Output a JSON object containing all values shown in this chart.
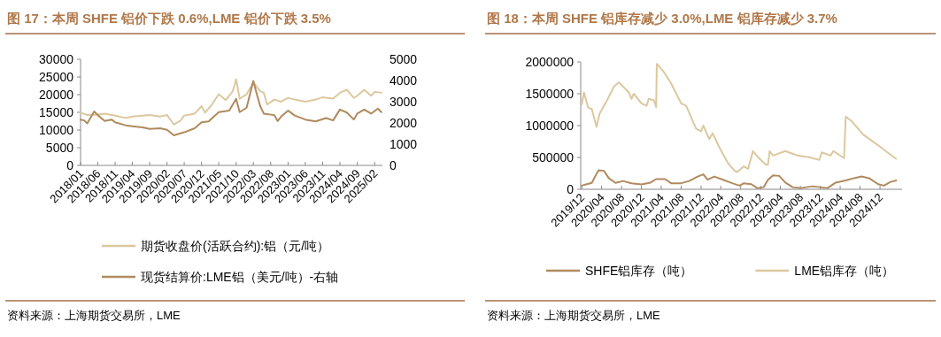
{
  "chart_data": [
    {
      "type": "line",
      "title": "图 17：本周 SHFE 铝价下跌 0.6%,LME 铝价下跌 3.5%",
      "legend": "bottom",
      "xlim": [
        "2018-01-01",
        "2025-04-10"
      ],
      "xticks": [
        {
          "value": "2018-01-01",
          "label": "2018/01"
        },
        {
          "value": "2018-06-01",
          "label": "2018/06"
        },
        {
          "value": "2018-11-01",
          "label": "2018/11"
        },
        {
          "value": "2019-04-01",
          "label": "2019/04"
        },
        {
          "value": "2019-09-01",
          "label": "2019/09"
        },
        {
          "value": "2020-02-01",
          "label": "2020/02"
        },
        {
          "value": "2020-07-01",
          "label": "2020/07"
        },
        {
          "value": "2020-12-01",
          "label": "2020/12"
        },
        {
          "value": "2021-05-01",
          "label": "2021/05"
        },
        {
          "value": "2021-10-01",
          "label": "2021/10"
        },
        {
          "value": "2022-03-01",
          "label": "2022/03"
        },
        {
          "value": "2022-08-01",
          "label": "2022/08"
        },
        {
          "value": "2023-01-01",
          "label": "2023/01"
        },
        {
          "value": "2023-06-01",
          "label": "2023/06"
        },
        {
          "value": "2023-11-01",
          "label": "2023/11"
        },
        {
          "value": "2024-04-01",
          "label": "2024/04"
        },
        {
          "value": "2024-09-01",
          "label": "2024/09"
        },
        {
          "value": "2025-02-01",
          "label": "2025/02"
        }
      ],
      "ylim": [
        0,
        30000
      ],
      "yticks": [
        0,
        5000,
        10000,
        15000,
        20000,
        25000,
        30000
      ],
      "y2lim": [
        0,
        5000
      ],
      "y2ticks": [
        0,
        1000,
        2000,
        3000,
        4000,
        5000
      ],
      "series": [
        {
          "name": "期货收盘价(活跃合约):铝（元/吨）",
          "color": "#dcc89f",
          "x": [
            "2018-01",
            "2018-03",
            "2018-06",
            "2018-08",
            "2018-11",
            "2019-02",
            "2019-04",
            "2019-07",
            "2019-09",
            "2019-12",
            "2020-02",
            "2020-04",
            "2020-06",
            "2020-07",
            "2020-10",
            "2020-12",
            "2021-01",
            "2021-03",
            "2021-05",
            "2021-07",
            "2021-09",
            "2021-10",
            "2021-11",
            "2022-01",
            "2022-03",
            "2022-05",
            "2022-06",
            "2022-07",
            "2022-09",
            "2022-11",
            "2023-01",
            "2023-03",
            "2023-06",
            "2023-09",
            "2023-11",
            "2024-02",
            "2024-04",
            "2024-06",
            "2024-08",
            "2024-09",
            "2024-11",
            "2025-01",
            "2025-02",
            "2025-04"
          ],
          "values": [
            14900,
            14250,
            14400,
            14650,
            14080,
            13400,
            13830,
            14080,
            14250,
            13830,
            14250,
            11560,
            12740,
            14080,
            14650,
            16760,
            14900,
            17180,
            20110,
            18440,
            20950,
            24300,
            18850,
            20110,
            23460,
            20950,
            20530,
            17180,
            18600,
            18020,
            19100,
            18600,
            18020,
            18600,
            19270,
            18850,
            20530,
            21370,
            19100,
            19690,
            21370,
            19690,
            20780,
            20530
          ]
        },
        {
          "name": "现货结算价:LME铝（美元/吨）-右轴",
          "color": "#b08a5e",
          "axis": "y2",
          "x": [
            "2018-01",
            "2018-02",
            "2018-03",
            "2018-05",
            "2018-06",
            "2018-08",
            "2018-10",
            "2018-11",
            "2019-02",
            "2019-04",
            "2019-07",
            "2019-09",
            "2019-12",
            "2020-02",
            "2020-04",
            "2020-07",
            "2020-10",
            "2020-12",
            "2021-02",
            "2021-05",
            "2021-08",
            "2021-09",
            "2021-10",
            "2021-11",
            "2022-01",
            "2022-03",
            "2022-04",
            "2022-05",
            "2022-06",
            "2022-09",
            "2022-10",
            "2022-11",
            "2023-01",
            "2023-03",
            "2023-06",
            "2023-09",
            "2023-12",
            "2024-02",
            "2024-04",
            "2024-06",
            "2024-08",
            "2024-09",
            "2024-11",
            "2025-01",
            "2025-03",
            "2025-04"
          ],
          "values": [
            2160,
            2120,
            1980,
            2540,
            2370,
            2090,
            2160,
            2030,
            1890,
            1840,
            1790,
            1720,
            1750,
            1680,
            1420,
            1560,
            1750,
            2030,
            2070,
            2510,
            2580,
            2860,
            3140,
            2510,
            2720,
            3980,
            3350,
            2790,
            2440,
            2370,
            2090,
            2300,
            2580,
            2350,
            2160,
            2070,
            2230,
            2120,
            2630,
            2490,
            2160,
            2440,
            2630,
            2440,
            2680,
            2510
          ]
        }
      ],
      "annotations": [
        "资料来源：上海期货交易所，LME"
      ]
    },
    {
      "type": "line",
      "title": "图 18：本周 SHFE 铝库存减少 3.0%,LME 铝库存减少 3.7%",
      "legend": "bottom",
      "xlim": [
        "2019-11-25",
        "2025-04-15"
      ],
      "xticks": [
        {
          "value": "2019-12-01",
          "label": "2019/12"
        },
        {
          "value": "2020-04-01",
          "label": "2020/04"
        },
        {
          "value": "2020-08-01",
          "label": "2020/08"
        },
        {
          "value": "2020-12-01",
          "label": "2020/12"
        },
        {
          "value": "2021-04-01",
          "label": "2021/04"
        },
        {
          "value": "2021-08-01",
          "label": "2021/08"
        },
        {
          "value": "2021-12-01",
          "label": "2021/12"
        },
        {
          "value": "2022-04-01",
          "label": "2022/04"
        },
        {
          "value": "2022-08-01",
          "label": "2022/08"
        },
        {
          "value": "2022-12-01",
          "label": "2022/12"
        },
        {
          "value": "2023-04-01",
          "label": "2023/04"
        },
        {
          "value": "2023-08-01",
          "label": "2023/08"
        },
        {
          "value": "2023-12-01",
          "label": "2023/12"
        },
        {
          "value": "2024-04-01",
          "label": "2024/04"
        },
        {
          "value": "2024-08-01",
          "label": "2024/08"
        },
        {
          "value": "2024-12-01",
          "label": "2024/12"
        }
      ],
      "ylim": [
        0,
        2000000
      ],
      "yticks": [
        0,
        500000,
        1000000,
        1500000,
        2000000
      ],
      "series": [
        {
          "name": "SHFE铝库存（吨）",
          "color": "#b08a5e",
          "x": [
            "2019-12-01",
            "2020-01-01",
            "2020-02-01",
            "2020-03-01",
            "2020-03-15",
            "2020-04-15",
            "2020-05-15",
            "2020-06-25",
            "2020-08-10",
            "2020-10-01",
            "2020-12-01",
            "2021-01-25",
            "2021-03-01",
            "2021-04-25",
            "2021-06-01",
            "2021-08-01",
            "2021-09-20",
            "2021-11-10",
            "2021-12-15",
            "2022-01-10",
            "2022-02-20",
            "2022-04-15",
            "2022-06-10",
            "2022-07-25",
            "2022-08-20",
            "2022-10-05",
            "2022-11-10",
            "2022-12-20",
            "2023-01-15",
            "2023-02-15",
            "2023-03-25",
            "2023-05-01",
            "2023-06-15",
            "2023-08-01",
            "2023-10-15",
            "2024-01-15",
            "2024-03-05",
            "2024-05-05",
            "2024-06-25",
            "2024-08-10",
            "2024-09-25",
            "2024-11-20",
            "2024-12-25",
            "2025-02-01",
            "2025-03-10"
          ],
          "values": [
            57000,
            80000,
            100000,
            245000,
            300000,
            290000,
            175000,
            100000,
            130000,
            95000,
            75000,
            105000,
            160000,
            160000,
            95000,
            95000,
            130000,
            200000,
            235000,
            150000,
            200000,
            150000,
            95000,
            57000,
            95000,
            80000,
            19000,
            33000,
            150000,
            220000,
            210000,
            105000,
            33000,
            19000,
            47000,
            19000,
            105000,
            140000,
            175000,
            200000,
            175000,
            80000,
            57000,
            113000,
            140000
          ]
        },
        {
          "name": "LME铝库存（吨）",
          "color": "#dcc89f",
          "x": [
            "2019-12-01",
            "2019-12-15",
            "2020-01-10",
            "2020-02-01",
            "2020-03-01",
            "2020-03-20",
            "2020-05-01",
            "2020-06-15",
            "2020-07-15",
            "2020-09-15",
            "2020-10-01",
            "2020-10-15",
            "2020-12-01",
            "2021-01-01",
            "2021-01-15",
            "2021-02-15",
            "2021-03-01",
            "2021-03-05",
            "2021-04-15",
            "2021-06-01",
            "2021-08-01",
            "2021-09-01",
            "2021-11-01",
            "2021-12-01",
            "2021-12-15",
            "2022-01-20",
            "2022-02-10",
            "2022-03-25",
            "2022-05-15",
            "2022-06-25",
            "2022-07-10",
            "2022-08-20",
            "2022-09-15",
            "2022-10-15",
            "2022-11-20",
            "2023-01-01",
            "2023-01-15",
            "2023-01-25",
            "2023-02-15",
            "2023-05-01",
            "2023-07-15",
            "2023-10-01",
            "2023-11-25",
            "2023-12-10",
            "2024-02-01",
            "2024-02-20",
            "2024-04-25",
            "2024-05-05",
            "2024-06-10",
            "2024-08-20",
            "2024-11-20",
            "2025-01-15",
            "2025-03-10"
          ],
          "values": [
            1330000,
            1520000,
            1280000,
            1260000,
            980000,
            1190000,
            1380000,
            1610000,
            1680000,
            1520000,
            1420000,
            1500000,
            1350000,
            1310000,
            1420000,
            1400000,
            1290000,
            1970000,
            1850000,
            1660000,
            1350000,
            1310000,
            950000,
            910000,
            1000000,
            790000,
            880000,
            650000,
            410000,
            290000,
            270000,
            360000,
            320000,
            600000,
            490000,
            390000,
            390000,
            600000,
            530000,
            600000,
            530000,
            500000,
            460000,
            580000,
            530000,
            600000,
            490000,
            1140000,
            1070000,
            860000,
            690000,
            580000,
            480000
          ]
        }
      ],
      "annotations": [
        "资料来源：上海期货交易所，LME"
      ]
    }
  ]
}
